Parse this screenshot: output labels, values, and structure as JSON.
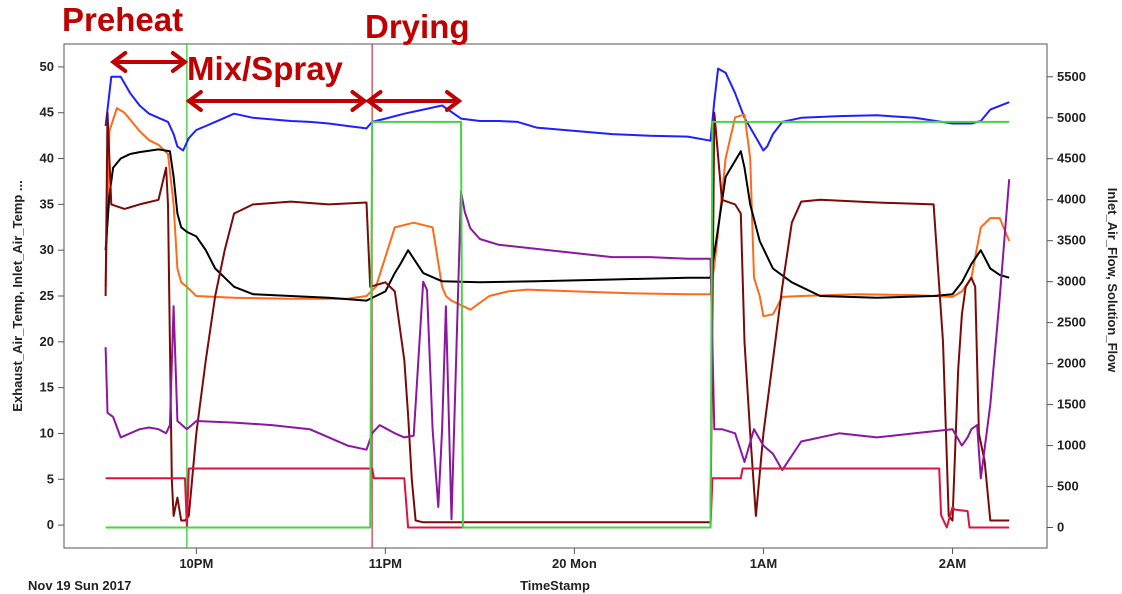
{
  "chart_data": {
    "type": "line",
    "xlabel": "TimeStamp",
    "date_label": "Nov 19 Sun 2017",
    "y_left_label": "Exhaust_Air_Temp, Inlet_Air_Temp ...",
    "y_right_label": "Inlet_Air_Flow, Solution_Flow",
    "x_range_hours": [
      21.3,
      26.5
    ],
    "ylim_left": [
      -2.5,
      52.5
    ],
    "ylim_right": [
      -250,
      5900
    ],
    "x_ticks": [
      {
        "label": "10PM",
        "value": 22
      },
      {
        "label": "11PM",
        "value": 23
      },
      {
        "label": "20 Mon",
        "value": 24
      },
      {
        "label": "1AM",
        "value": 25
      },
      {
        "label": "2AM",
        "value": 26
      }
    ],
    "y_left_ticks": [
      "0",
      "5",
      "10",
      "15",
      "20",
      "25",
      "30",
      "35",
      "40",
      "45",
      "50"
    ],
    "y_right_ticks": [
      "0",
      "500",
      "1000",
      "1500",
      "2000",
      "2500",
      "3000",
      "3500",
      "4000",
      "4500",
      "5000",
      "5500"
    ],
    "phases": [
      {
        "label": "Preheat",
        "start": 21.55,
        "end": 21.95
      },
      {
        "label": "Mix/Spray",
        "start": 21.95,
        "end": 22.9
      },
      {
        "label": "Drying",
        "start": 22.9,
        "end": 23.4
      }
    ],
    "markers": [
      {
        "color": "#22cc22",
        "x": 21.95
      },
      {
        "color": "#cc3344",
        "x": 22.93
      }
    ],
    "colors": {
      "axis": "#555555",
      "phase_text": "#c00000",
      "arrow": "#c00000"
    },
    "series": [
      {
        "color": "#1f1fff",
        "axis": "right",
        "x": [
          21.52,
          21.55,
          21.6,
          21.65,
          21.7,
          21.75,
          21.8,
          21.85,
          21.88,
          21.9,
          21.93,
          21.96,
          22.0,
          22.05,
          22.1,
          22.2,
          22.3,
          22.4,
          22.5,
          22.6,
          22.7,
          22.8,
          22.9,
          22.93,
          23.0,
          23.1,
          23.2,
          23.3,
          23.4,
          23.5,
          23.6,
          23.7,
          23.8,
          23.9,
          24.0,
          24.2,
          24.4,
          24.6,
          24.72,
          24.74,
          24.76,
          24.8,
          24.85,
          24.9,
          24.95,
          25.0,
          25.02,
          25.05,
          25.1,
          25.2,
          25.4,
          25.6,
          25.8,
          26.0,
          26.1,
          26.15,
          26.2,
          26.3
        ],
        "y": [
          4900,
          5500,
          5500,
          5300,
          5150,
          5050,
          5000,
          4950,
          4800,
          4650,
          4600,
          4750,
          4850,
          4900,
          4950,
          5050,
          5000,
          4980,
          4960,
          4950,
          4930,
          4900,
          4870,
          4950,
          4990,
          5050,
          5100,
          5150,
          4990,
          4960,
          4960,
          4950,
          4880,
          4860,
          4840,
          4800,
          4780,
          4770,
          4720,
          5200,
          5600,
          5550,
          5300,
          5000,
          4800,
          4600,
          4650,
          4800,
          4950,
          5000,
          5020,
          5030,
          5000,
          4930,
          4930,
          4960,
          5100,
          5190
        ]
      },
      {
        "color": "#ff6a1a",
        "axis": "left",
        "x": [
          21.52,
          21.54,
          21.58,
          21.62,
          21.7,
          21.75,
          21.8,
          21.85,
          21.88,
          21.9,
          21.92,
          21.95,
          22.0,
          22.2,
          22.5,
          22.8,
          22.9,
          22.95,
          23.05,
          23.15,
          23.25,
          23.3,
          23.32,
          23.35,
          23.45,
          23.55,
          23.65,
          23.75,
          24.0,
          24.3,
          24.6,
          24.72,
          24.75,
          24.8,
          24.85,
          24.9,
          24.93,
          24.95,
          24.98,
          25.0,
          25.05,
          25.1,
          25.2,
          25.5,
          25.8,
          26.0,
          26.05,
          26.1,
          26.15,
          26.2,
          26.25,
          26.3
        ],
        "y": [
          26,
          43,
          45.5,
          45,
          43,
          42,
          41.5,
          40.5,
          35,
          28,
          26.5,
          26,
          25,
          24.8,
          24.7,
          24.7,
          25,
          26,
          32.5,
          33,
          32.5,
          26,
          25,
          24.5,
          23.5,
          25,
          25.5,
          25.7,
          25.5,
          25.3,
          25.2,
          25.2,
          30,
          40,
          44.5,
          44.8,
          40,
          27,
          25,
          22.8,
          23,
          24.9,
          25,
          25.2,
          25.1,
          24.9,
          25.5,
          27,
          32.5,
          33.5,
          33.5,
          31
        ]
      },
      {
        "color": "#000000",
        "axis": "left",
        "x": [
          21.52,
          21.54,
          21.56,
          21.6,
          21.65,
          21.7,
          21.8,
          21.86,
          21.88,
          21.9,
          21.92,
          21.95,
          22.0,
          22.05,
          22.1,
          22.2,
          22.3,
          22.5,
          22.7,
          22.9,
          23.0,
          23.05,
          23.08,
          23.12,
          23.2,
          23.3,
          23.5,
          23.8,
          24.2,
          24.6,
          24.72,
          24.75,
          24.8,
          24.88,
          24.9,
          24.93,
          24.98,
          25.05,
          25.15,
          25.3,
          25.6,
          25.9,
          26.0,
          26.05,
          26.1,
          26.15,
          26.2,
          26.25,
          26.3
        ],
        "y": [
          30,
          36,
          39,
          40,
          40.5,
          40.7,
          41,
          40.8,
          38,
          34,
          32.5,
          32,
          31.5,
          30,
          28,
          26,
          25.2,
          25,
          24.8,
          24.5,
          25.5,
          27.5,
          28.5,
          30,
          27.5,
          26.6,
          26.5,
          26.6,
          26.8,
          27,
          27,
          31,
          38,
          40.8,
          39,
          35,
          31,
          28,
          26.5,
          25,
          24.8,
          25,
          25.2,
          26.5,
          28.5,
          30,
          28,
          27.3,
          27
        ]
      },
      {
        "color": "#7a0a0a",
        "axis": "left",
        "x": [
          21.52,
          21.53,
          21.55,
          21.62,
          21.7,
          21.8,
          21.84,
          21.85,
          21.87,
          21.88,
          21.9,
          21.92,
          21.94,
          21.96,
          22.0,
          22.05,
          22.1,
          22.15,
          22.2,
          22.3,
          22.5,
          22.7,
          22.9,
          22.92,
          23.0,
          23.05,
          23.1,
          23.12,
          23.14,
          23.16,
          23.2,
          23.3,
          23.4,
          24.0,
          24.5,
          24.72,
          24.74,
          24.78,
          24.85,
          24.88,
          24.9,
          24.93,
          24.96,
          25.0,
          25.05,
          25.1,
          25.15,
          25.2,
          25.3,
          25.6,
          25.9,
          25.95,
          25.98,
          26.0,
          26.03,
          26.05,
          26.07,
          26.1,
          26.12,
          26.14,
          26.17,
          26.2,
          26.3
        ],
        "y": [
          25,
          45,
          35,
          34.5,
          35,
          35.5,
          39,
          35,
          5,
          1,
          3,
          0.5,
          0.5,
          1,
          10,
          18,
          25,
          30,
          34,
          35,
          35.3,
          35,
          35.2,
          26,
          26.5,
          25.5,
          18,
          12,
          5,
          0.5,
          0.3,
          0.3,
          0.3,
          0.3,
          0.3,
          0.3,
          45,
          35.5,
          35,
          34,
          20,
          10,
          1,
          10,
          18,
          26,
          33,
          35.3,
          35.5,
          35.2,
          35,
          20,
          1,
          0.5,
          17,
          23,
          26,
          27,
          26,
          10,
          7,
          0.5,
          0.5
        ]
      },
      {
        "color": "#8b17a0",
        "axis": "right",
        "x": [
          21.52,
          21.53,
          21.56,
          21.6,
          21.65,
          21.7,
          21.75,
          21.8,
          21.84,
          21.86,
          21.88,
          21.9,
          21.95,
          22.0,
          22.2,
          22.4,
          22.6,
          22.8,
          22.9,
          22.93,
          22.97,
          23.05,
          23.1,
          23.15,
          23.2,
          23.22,
          23.25,
          23.28,
          23.3,
          23.32,
          23.35,
          23.4,
          23.42,
          23.45,
          23.5,
          23.6,
          23.8,
          24.0,
          24.2,
          24.4,
          24.6,
          24.72,
          24.74,
          24.78,
          24.85,
          24.9,
          24.95,
          25.0,
          25.05,
          25.1,
          25.2,
          25.4,
          25.6,
          25.8,
          26.0,
          26.05,
          26.08,
          26.1,
          26.13,
          26.15,
          26.2,
          26.25,
          26.3
        ],
        "y": [
          2200,
          1400,
          1350,
          1100,
          1150,
          1200,
          1220,
          1200,
          1150,
          1250,
          2700,
          1300,
          1200,
          1300,
          1280,
          1250,
          1200,
          1000,
          950,
          1150,
          1250,
          1150,
          1100,
          1120,
          3000,
          2900,
          1200,
          250,
          1200,
          2700,
          100,
          4100,
          3850,
          3650,
          3520,
          3450,
          3400,
          3350,
          3300,
          3300,
          3280,
          3280,
          1200,
          1200,
          1150,
          800,
          1200,
          1000,
          900,
          700,
          1050,
          1150,
          1100,
          1150,
          1200,
          1000,
          1100,
          1200,
          1250,
          600,
          1500,
          2800,
          4250
        ]
      },
      {
        "color": "#dc143c",
        "axis": "right",
        "x": [
          21.52,
          21.94,
          21.95,
          21.96,
          22.93,
          22.94,
          23.1,
          23.12,
          23.3,
          24.72,
          24.73,
          24.88,
          24.89,
          25.93,
          25.94,
          25.97,
          26.0,
          26.01,
          26.08,
          26.09,
          26.12,
          26.15,
          26.3
        ],
        "y": [
          600,
          600,
          0,
          720,
          720,
          600,
          600,
          0,
          0,
          0,
          600,
          600,
          720,
          720,
          150,
          0,
          250,
          220,
          200,
          0,
          0,
          0,
          0
        ]
      },
      {
        "color": "#44d444",
        "axis": "right",
        "x": [
          21.52,
          22.92,
          22.93,
          23.4,
          23.41,
          24.72,
          24.73,
          25.93,
          25.94,
          26.3
        ],
        "y": [
          0,
          0,
          4950,
          4950,
          0,
          0,
          4950,
          4950,
          4950,
          4950
        ]
      }
    ]
  }
}
